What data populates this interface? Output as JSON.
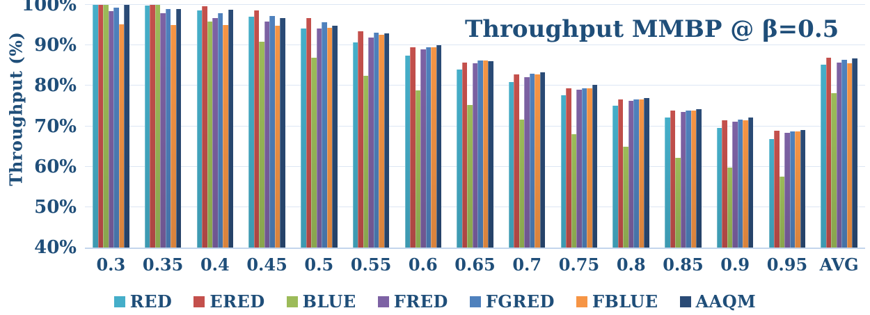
{
  "title": "Throughput MMBP @ β=0.5",
  "colors": {
    "text": "#1F4E79",
    "gridline": "#DCE6F4",
    "axis_line": "#C3D5EC",
    "background": "#FFFFFF"
  },
  "chart_data": {
    "type": "bar",
    "title": "Throughput MMBP @ β=0.5",
    "xlabel": "",
    "ylabel": "Throughput (%)",
    "ylim": [
      40,
      100
    ],
    "yticks": [
      "100%",
      "90%",
      "80%",
      "70%",
      "60%",
      "50%",
      "40%"
    ],
    "grid": true,
    "legend_position": "bottom",
    "categories": [
      "0.3",
      "0.35",
      "0.4",
      "0.45",
      "0.5",
      "0.55",
      "0.6",
      "0.65",
      "0.7",
      "0.75",
      "0.8",
      "0.85",
      "0.9",
      "0.95",
      "AVG"
    ],
    "series": [
      {
        "name": "RED",
        "color": "#45AEC9",
        "values": [
          100,
          99.8,
          98.6,
          97.0,
          94.1,
          90.7,
          87.5,
          84.0,
          81.0,
          77.7,
          75.0,
          72.2,
          69.6,
          66.9,
          85.3
        ]
      },
      {
        "name": "ERED",
        "color": "#C4504C",
        "values": [
          100,
          100,
          99.6,
          98.7,
          96.8,
          93.4,
          89.6,
          85.8,
          82.8,
          79.3,
          76.6,
          73.8,
          71.5,
          68.9,
          86.9
        ]
      },
      {
        "name": "BLUE",
        "color": "#9CBB59",
        "values": [
          100,
          100,
          95.8,
          90.9,
          86.9,
          82.4,
          78.8,
          75.2,
          71.7,
          68.0,
          64.9,
          62.2,
          59.8,
          57.5,
          78.1
        ]
      },
      {
        "name": "FRED",
        "color": "#7D62A4",
        "values": [
          98.4,
          98.0,
          96.8,
          95.8,
          94.1,
          92.0,
          89.0,
          85.6,
          82.2,
          79.0,
          76.3,
          73.6,
          71.2,
          68.3,
          85.7
        ]
      },
      {
        "name": "FGRED",
        "color": "#4F81BD",
        "values": [
          99.3,
          99.0,
          98.0,
          97.2,
          95.7,
          93.1,
          89.6,
          86.2,
          83.0,
          79.4,
          76.7,
          73.9,
          71.6,
          68.7,
          86.5
        ]
      },
      {
        "name": "FBLUE",
        "color": "#F69545",
        "values": [
          95.2,
          95.1,
          95.1,
          94.9,
          94.4,
          92.6,
          89.6,
          86.3,
          82.8,
          79.4,
          76.7,
          73.9,
          71.5,
          68.7,
          85.5
        ]
      },
      {
        "name": "AAQM",
        "color": "#2A4B76",
        "values": [
          100,
          98.9,
          98.8,
          96.7,
          94.8,
          92.9,
          90.0,
          86.1,
          83.3,
          80.2,
          77.0,
          74.2,
          72.2,
          69.0,
          86.7
        ]
      }
    ]
  }
}
